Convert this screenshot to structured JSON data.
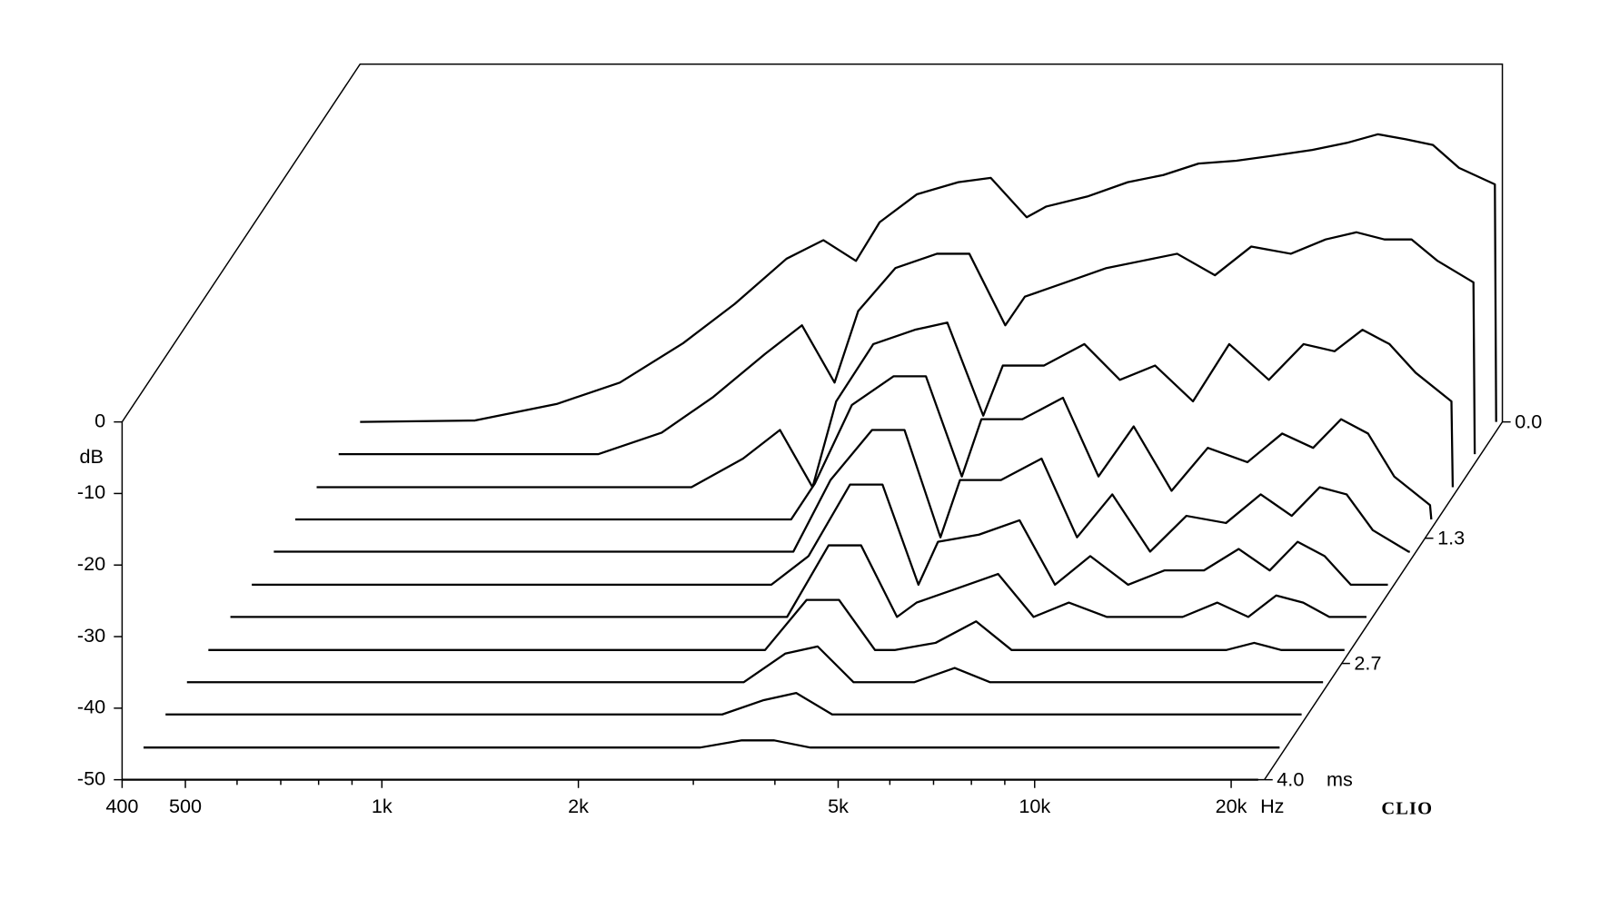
{
  "chart_data": {
    "type": "waterfall",
    "x": [
      400,
      600,
      800,
      1000,
      1250,
      1500,
      1800,
      2050,
      2300,
      2500,
      2850,
      3300,
      3700,
      4200,
      4500,
      5200,
      6000,
      6800,
      7700,
      8800,
      10000,
      11500,
      13000,
      14500,
      16000,
      17600,
      19300,
      21900,
      22000
    ],
    "xlim": [
      400,
      22000
    ],
    "log_x": true,
    "xticks": [
      400,
      500,
      {
        "value": 1000,
        "label": "1k"
      },
      {
        "value": 2000,
        "label": "2k"
      },
      {
        "value": 5000,
        "label": "5k"
      },
      {
        "value": 10000,
        "label": "10k"
      },
      {
        "value": 20000,
        "label": "20k"
      }
    ],
    "xminorticks": [
      600,
      700,
      800,
      900,
      3000,
      4000,
      6000,
      7000,
      8000,
      9000
    ],
    "xlabel": "Hz",
    "ylabel": "dB",
    "ylim": [
      -50,
      0
    ],
    "yticks": [
      0,
      -10,
      -20,
      -30,
      -40,
      -50
    ],
    "z": [
      0,
      0.36,
      0.73,
      1.09,
      1.45,
      1.82,
      2.18,
      2.55,
      2.91,
      3.27,
      3.64,
      4
    ],
    "zlim": [
      0,
      4
    ],
    "zticks": [
      {
        "value": 0,
        "label": "0.0"
      },
      1.3,
      2.7,
      {
        "value": 4,
        "label": "4.0"
      }
    ],
    "zlabel": "ms",
    "values": [
      [
        -50,
        -49.8,
        -47.5,
        -44.5,
        -39,
        -33.5,
        -27.2,
        -24.6,
        -27.5,
        -22.1,
        -18.2,
        -16.5,
        -15.9,
        -21.4,
        -19.9,
        -18.5,
        -16.5,
        -15.5,
        -13.9,
        -13.5,
        -12.8,
        -12,
        -11,
        -9.8,
        -10.5,
        -11.3,
        -14.5,
        -16.8,
        -50
      ],
      [
        -50,
        -50,
        -50,
        -50,
        -47,
        -42,
        -36,
        -32,
        -40,
        -30,
        -24,
        -22,
        -22,
        -32,
        -28,
        -26,
        -24,
        -23,
        -22,
        -25,
        -21,
        -22,
        -20,
        -19,
        -20,
        -20,
        -23,
        -26,
        -50
      ],
      [
        -50,
        -50,
        -50,
        -50,
        -50,
        -50,
        -46,
        -42,
        -50,
        -38,
        -30,
        -28,
        -27,
        -40,
        -33,
        -33,
        -30,
        -35,
        -33,
        -38,
        -30,
        -35,
        -30,
        -31,
        -28,
        -30,
        -34,
        -38,
        -50
      ],
      [
        -50,
        -50,
        -50,
        -50,
        -50,
        -50,
        -50,
        -50,
        -50,
        -45,
        -34,
        -30,
        -30,
        -44,
        -36,
        -36,
        -33,
        -44,
        -37,
        -46,
        -40,
        -42,
        -38,
        -40,
        -36,
        -38,
        -44,
        -48,
        -50
      ],
      [
        -50,
        -50,
        -50,
        -50,
        -50,
        -50,
        -50,
        -50,
        -50,
        -50,
        -40,
        -33,
        -33,
        -48,
        -40,
        -40,
        -37,
        -48,
        -42,
        -50,
        -45,
        -46,
        -42,
        -45,
        -41,
        -42,
        -47,
        -50,
        -50
      ],
      [
        -50,
        -50,
        -50,
        -50,
        -50,
        -50,
        -50,
        -50,
        -50,
        -50,
        -46,
        -36,
        -36,
        -50,
        -44,
        -43,
        -41,
        -50,
        -46,
        -50,
        -48,
        -48,
        -45,
        -48,
        -44,
        -46,
        -50,
        -50,
        -50
      ],
      [
        -50,
        -50,
        -50,
        -50,
        -50,
        -50,
        -50,
        -50,
        -50,
        -50,
        -50,
        -40,
        -40,
        -50,
        -48,
        -46,
        -44,
        -50,
        -48,
        -50,
        -50,
        -50,
        -48,
        -50,
        -47,
        -48,
        -50,
        -50,
        -50
      ],
      [
        -50,
        -50,
        -50,
        -50,
        -50,
        -50,
        -50,
        -50,
        -50,
        -50,
        -50,
        -43,
        -43,
        -50,
        -50,
        -49,
        -46,
        -50,
        -50,
        -50,
        -50,
        -50,
        -50,
        -50,
        -49,
        -50,
        -50,
        -50,
        -50
      ],
      [
        -50,
        -50,
        -50,
        -50,
        -50,
        -50,
        -50,
        -50,
        -50,
        -50,
        -50,
        -46,
        -45,
        -50,
        -50,
        -50,
        -48,
        -50,
        -50,
        -50,
        -50,
        -50,
        -50,
        -50,
        -50,
        -50,
        -50,
        -50,
        -50
      ],
      [
        -50,
        -50,
        -50,
        -50,
        -50,
        -50,
        -50,
        -50,
        -50,
        -50,
        -50,
        -48,
        -47,
        -50,
        -50,
        -50,
        -50,
        -50,
        -50,
        -50,
        -50,
        -50,
        -50,
        -50,
        -50,
        -50,
        -50,
        -50,
        -50
      ],
      [
        -50,
        -50,
        -50,
        -50,
        -50,
        -50,
        -50,
        -50,
        -50,
        -50,
        -50,
        -49,
        -49,
        -50,
        -50,
        -50,
        -50,
        -50,
        -50,
        -50,
        -50,
        -50,
        -50,
        -50,
        -50,
        -50,
        -50,
        -50,
        -50
      ],
      [
        -50,
        -50,
        -50,
        -50,
        -50,
        -50,
        -50,
        -50,
        -50,
        -50,
        -50,
        -50,
        -50,
        -50,
        -50,
        -50,
        -50,
        -50,
        -50,
        -50,
        -50,
        -50,
        -50,
        -50,
        -50,
        -50,
        -50,
        -50,
        -50
      ]
    ],
    "color": "#000000",
    "watermark": "CLIO"
  }
}
